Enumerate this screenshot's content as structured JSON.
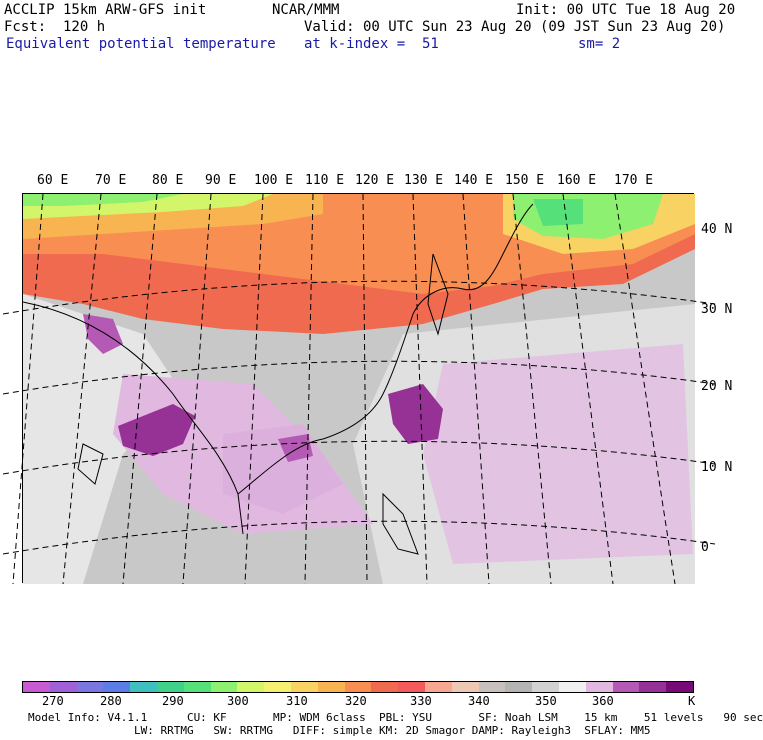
{
  "header": {
    "line1_left": "ACCLIP 15km ARW-GFS init",
    "line1_center": "NCAR/MMM",
    "line1_right": "Init: 00 UTC Tue 18 Aug 20",
    "line2_left": "Fcst:  120 h",
    "line2_right": "Valid: 00 UTC Sun 23 Aug 20 (09 JST Sun 23 Aug 20)",
    "field_name": "Equivalent potential temperature",
    "level": "at k-index =  51",
    "smooth": "sm= 2"
  },
  "map": {
    "lon_labels": [
      "60 E",
      "70 E",
      "80 E",
      "90 E",
      "100 E",
      "110 E",
      "120 E",
      "130 E",
      "140 E",
      "150 E",
      "160 E",
      "170 E"
    ],
    "lat_labels": [
      "40 N",
      "30 N",
      "20 N",
      "10 N",
      "0"
    ]
  },
  "colorbar": {
    "colors": [
      "#c85ad2",
      "#a060d8",
      "#7a78e0",
      "#5a7ee6",
      "#3fbfbf",
      "#3fd08a",
      "#55e07a",
      "#8ef070",
      "#d2f56a",
      "#f5f070",
      "#f8d262",
      "#f8b450",
      "#f88e52",
      "#f06a50",
      "#f55a5a",
      "#f8a890",
      "#eec8b4",
      "#c8c0bc",
      "#b4b4b4",
      "#d2d2d2",
      "#f0f0f0",
      "#e0b8e0",
      "#b45ab4",
      "#963296",
      "#780a78"
    ],
    "tick_labels": [
      "270",
      "280",
      "290",
      "300",
      "310",
      "320",
      "330",
      "340",
      "350",
      "360"
    ],
    "unit": "K"
  },
  "footer": {
    "line1": "Model Info: V4.1.1      CU: KF       MP: WDM 6class  PBL: YSU       SF: Noah LSM    15 km    51 levels   90 sec",
    "line2": "                LW: RRTMG   SW: RRTMG   DIFF: simple KM: 2D Smagor DAMP: Rayleigh3  SFLAY: MM5"
  }
}
